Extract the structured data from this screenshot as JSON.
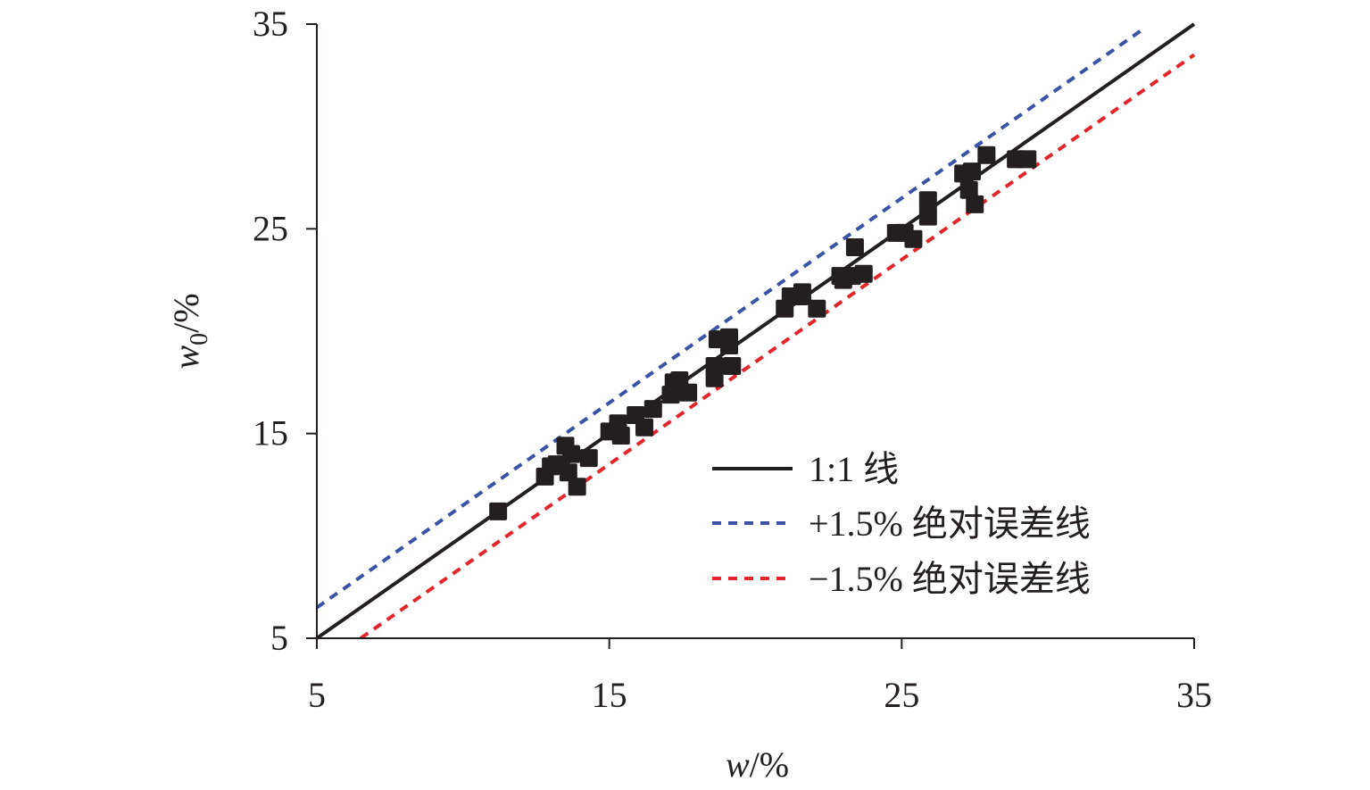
{
  "chart_data": {
    "type": "scatter",
    "xlabel": {
      "var": "w",
      "unit": "/%"
    },
    "ylabel": {
      "var": "w",
      "sub": "0",
      "unit": "/%"
    },
    "xlim": [
      5,
      35
    ],
    "ylim": [
      5,
      35
    ],
    "xticks": [
      "5",
      "15",
      "25",
      "35"
    ],
    "yticks": [
      "5",
      "15",
      "25",
      "35"
    ],
    "grid": false,
    "legend_position": "bottom-right",
    "series": [
      {
        "name": "1:1 线",
        "kind": "line",
        "offset": 0,
        "color": "#231f20",
        "style": "solid"
      },
      {
        "name": "+1.5% 绝对误差线",
        "kind": "line",
        "offset": 1.5,
        "color": "#3a53a4",
        "style": "dashed"
      },
      {
        "name": "−1.5% 绝对误差线",
        "kind": "line",
        "offset": -1.5,
        "color": "#e3262c",
        "style": "dashed"
      }
    ],
    "points": {
      "color": "#231f20",
      "xy": [
        [
          11.2,
          11.2
        ],
        [
          12.8,
          12.9
        ],
        [
          13.0,
          13.4
        ],
        [
          13.2,
          13.5
        ],
        [
          13.5,
          14.4
        ],
        [
          13.6,
          13.1
        ],
        [
          13.7,
          14.0
        ],
        [
          13.9,
          12.4
        ],
        [
          14.3,
          13.8
        ],
        [
          15.0,
          15.1
        ],
        [
          15.3,
          15.5
        ],
        [
          15.4,
          14.9
        ],
        [
          15.9,
          15.9
        ],
        [
          16.2,
          15.3
        ],
        [
          16.5,
          16.2
        ],
        [
          17.1,
          16.9
        ],
        [
          17.2,
          17.5
        ],
        [
          17.4,
          17.6
        ],
        [
          17.7,
          17.0
        ],
        [
          18.6,
          17.7
        ],
        [
          18.6,
          18.3
        ],
        [
          18.7,
          19.6
        ],
        [
          19.1,
          19.7
        ],
        [
          19.2,
          18.3
        ],
        [
          19.1,
          19.3
        ],
        [
          21.0,
          21.1
        ],
        [
          21.2,
          21.7
        ],
        [
          21.5,
          21.7
        ],
        [
          21.6,
          21.9
        ],
        [
          22.1,
          21.1
        ],
        [
          22.9,
          22.7
        ],
        [
          23.0,
          22.5
        ],
        [
          23.3,
          22.7
        ],
        [
          23.4,
          24.1
        ],
        [
          23.7,
          22.8
        ],
        [
          24.8,
          24.8
        ],
        [
          25.1,
          24.8
        ],
        [
          25.4,
          24.5
        ],
        [
          25.9,
          25.6
        ],
        [
          25.9,
          26.4
        ],
        [
          27.1,
          27.7
        ],
        [
          27.3,
          26.9
        ],
        [
          27.4,
          27.8
        ],
        [
          27.5,
          26.2
        ],
        [
          27.9,
          28.6
        ],
        [
          28.9,
          28.4
        ],
        [
          29.3,
          28.4
        ]
      ]
    }
  }
}
